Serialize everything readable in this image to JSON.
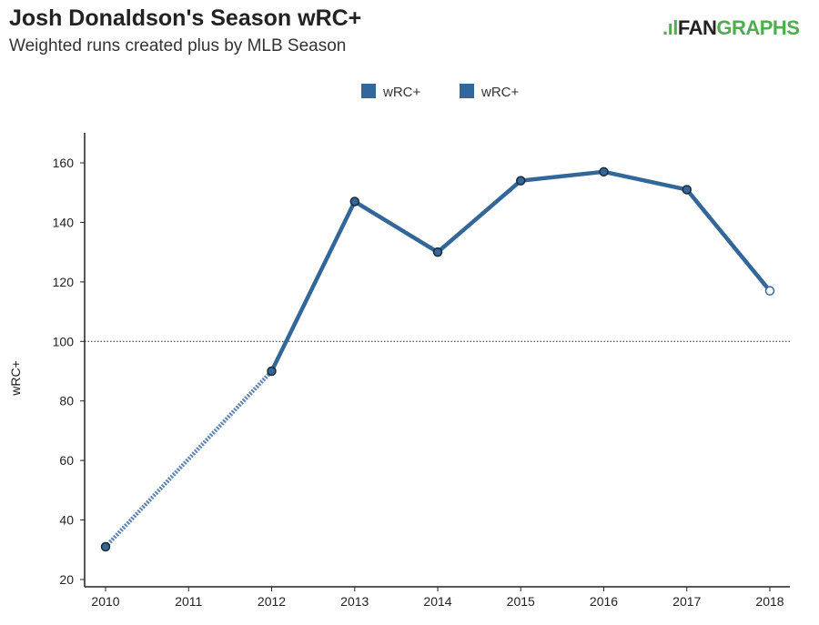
{
  "header": {
    "title": "Josh Donaldson's Season wRC+",
    "subtitle": "Weighted runs created plus by MLB Season",
    "logo_text": "FANGRAPHS"
  },
  "chart_data": {
    "type": "line",
    "title": "Josh Donaldson's Season wRC+",
    "subtitle": "Weighted runs created plus by MLB Season",
    "xlabel": "",
    "ylabel": "wRC+",
    "legend": {
      "placement": "top-center",
      "entries": [
        "wRC+",
        "wRC+"
      ]
    },
    "categories": [
      "2010",
      "2011",
      "2012",
      "2013",
      "2014",
      "2015",
      "2016",
      "2017",
      "2018"
    ],
    "x": [
      2010,
      2012,
      2013,
      2014,
      2015,
      2016,
      2017,
      2018
    ],
    "series": [
      {
        "name": "wRC+",
        "style": "dotted",
        "x": [
          2010,
          2012
        ],
        "values": [
          31,
          90
        ]
      },
      {
        "name": "wRC+",
        "style": "solid",
        "x": [
          2012,
          2013,
          2014,
          2015,
          2016,
          2017,
          2018
        ],
        "values": [
          90,
          147,
          130,
          154,
          157,
          151,
          117
        ]
      }
    ],
    "hollow_points": [
      2018
    ],
    "reference_line": 100,
    "yticks": [
      20,
      40,
      60,
      80,
      100,
      120,
      140,
      160
    ],
    "ylim": [
      18,
      170
    ],
    "xlim": [
      2009.75,
      2018.25
    ],
    "grid": false,
    "color": "#336699"
  }
}
